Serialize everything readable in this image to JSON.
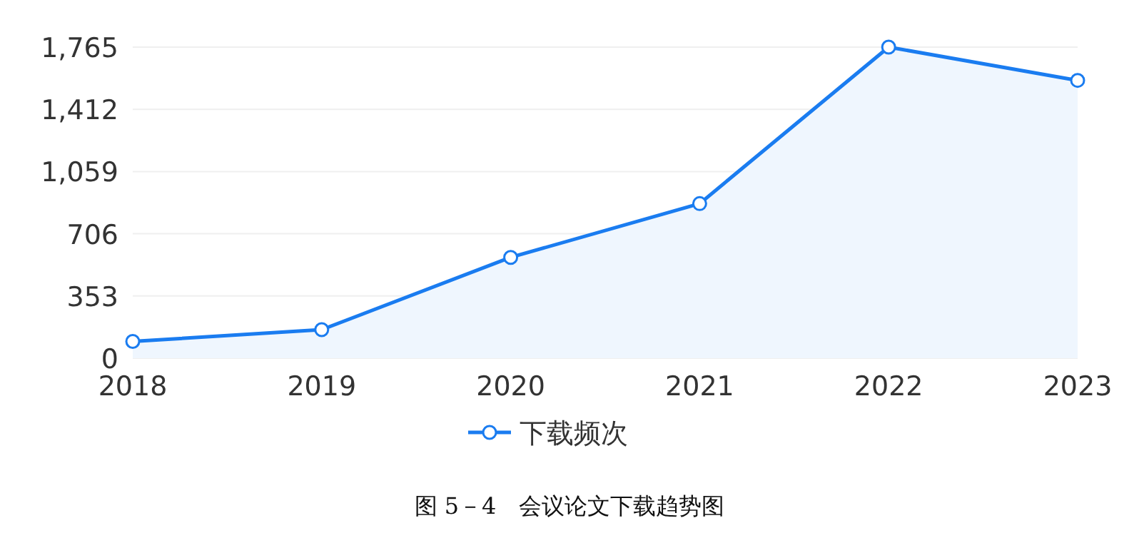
{
  "chart_data": {
    "type": "area",
    "categories": [
      "2018",
      "2019",
      "2020",
      "2021",
      "2022",
      "2023"
    ],
    "series": [
      {
        "name": "下载频次",
        "color": "#1a7cf0",
        "values": [
          95,
          162,
          572,
          877,
          1765,
          1576
        ]
      }
    ],
    "ylim": [
      0,
      1765
    ],
    "yticks": [
      {
        "value": 0,
        "label": "0"
      },
      {
        "value": 353,
        "label": "353"
      },
      {
        "value": 706,
        "label": "706"
      },
      {
        "value": 1059,
        "label": "1,059"
      },
      {
        "value": 1412,
        "label": "1,412"
      },
      {
        "value": 1765,
        "label": "1,765"
      }
    ],
    "grid": "y",
    "legend": "bottom",
    "marker": "circle",
    "line_style": "solid",
    "annotations": [
      "图 5－4　会议论文下载趋势图"
    ]
  }
}
